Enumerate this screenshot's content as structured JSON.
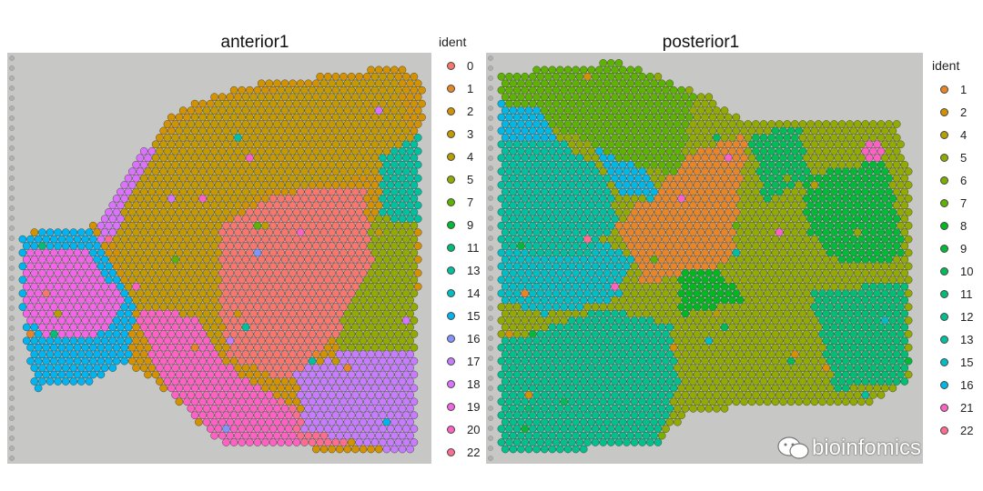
{
  "chart_data": [
    {
      "type": "spatial-scatter",
      "title": "anterior1",
      "legend_title": "ident",
      "categories": [
        "0",
        "1",
        "2",
        "3",
        "4",
        "5",
        "7",
        "9",
        "11",
        "13",
        "14",
        "15",
        "16",
        "17",
        "18",
        "19",
        "20",
        "22"
      ],
      "colors": [
        "#f8766d",
        "#e88526",
        "#d39200",
        "#c49a00",
        "#b79f00",
        "#93aa00",
        "#5eb300",
        "#00ba38",
        "#00bf74",
        "#00c19f",
        "#00bfc4",
        "#00b4f0",
        "#8494ff",
        "#c77cff",
        "#db72fb",
        "#f365e6",
        "#ff61c3",
        "#ff6c91"
      ],
      "background": "#c7c8c5"
    },
    {
      "type": "spatial-scatter",
      "title": "posterior1",
      "legend_title": "ident",
      "categories": [
        "1",
        "2",
        "4",
        "5",
        "6",
        "7",
        "8",
        "9",
        "10",
        "11",
        "12",
        "13",
        "15",
        "16",
        "21",
        "22"
      ],
      "colors": [
        "#e88526",
        "#d39200",
        "#b79f00",
        "#93aa00",
        "#7cae00",
        "#5eb300",
        "#00b81f",
        "#00ba38",
        "#00bc59",
        "#00bf74",
        "#00c08d",
        "#00c19f",
        "#00bfc4",
        "#00b8e5",
        "#ff61c3",
        "#ff6c91"
      ],
      "background": "#c7c8c5"
    }
  ],
  "watermark": "bioinfomics"
}
